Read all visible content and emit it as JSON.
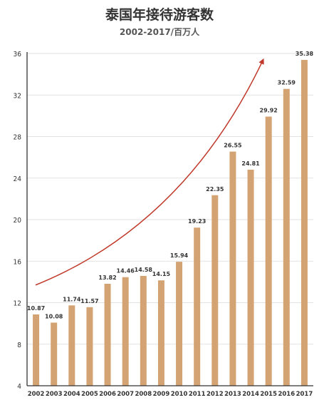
{
  "chart_data": {
    "type": "bar",
    "title": "泰国年接待游客数",
    "subtitle": "2002-2017/百万人",
    "categories": [
      "2002",
      "2003",
      "2004",
      "2005",
      "2006",
      "2007",
      "2008",
      "2009",
      "2010",
      "2011",
      "2012",
      "2013",
      "2014",
      "2015",
      "2016",
      "2017"
    ],
    "values": [
      10.87,
      10.08,
      11.74,
      11.57,
      13.82,
      14.46,
      14.58,
      14.15,
      15.94,
      19.23,
      22.35,
      26.55,
      24.81,
      29.92,
      32.59,
      35.38
    ],
    "data_labels": [
      "10.87",
      "10.08",
      "11.74",
      "11.57",
      "13.82",
      "14.46",
      "14.58",
      "14.15",
      "15.94",
      "19.23",
      "22.35",
      "26.55",
      "24.81",
      "29.92",
      "32.59",
      "35.38"
    ],
    "yticks": [
      4,
      8,
      12,
      16,
      20,
      24,
      28,
      32,
      36
    ],
    "ylim": [
      4,
      36
    ],
    "xlabel": "",
    "ylabel": "",
    "grid": true,
    "legend": "none",
    "trend_arrow": true,
    "colors": {
      "bar": "#d4a373",
      "grid": "#d9d9d9",
      "arrow": "#c0392b",
      "axis": "#333333"
    }
  }
}
